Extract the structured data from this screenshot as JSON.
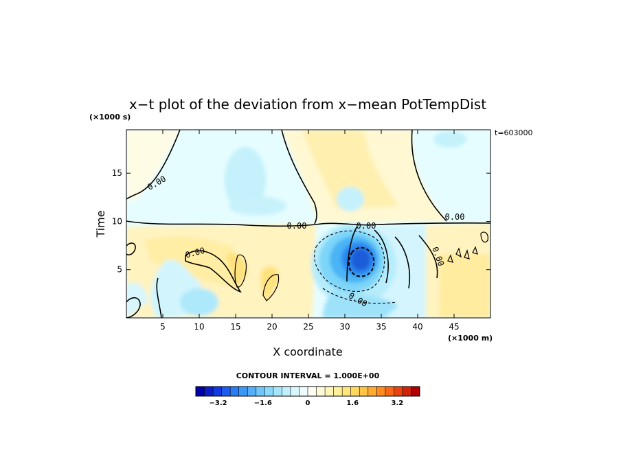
{
  "chart_data": {
    "type": "heatmap",
    "title": "x−t plot of the deviation from x−mean PotTempDist",
    "ylabel": "Time",
    "xlabel": "X coordinate",
    "y_unit": "(×1000 s)",
    "x_unit": "(×1000 m)",
    "time_label": "t=603000",
    "xlim": [
      0,
      50
    ],
    "ylim": [
      0,
      19.5
    ],
    "x_ticks": [
      "5",
      "10",
      "15",
      "20",
      "25",
      "30",
      "35",
      "40",
      "45"
    ],
    "x_tick_values": [
      5,
      10,
      15,
      20,
      25,
      30,
      35,
      40,
      45
    ],
    "y_ticks": [
      "5",
      "10",
      "15"
    ],
    "y_tick_values": [
      5,
      10,
      15
    ],
    "contour_labels": [
      "0.00",
      "0.00",
      "0.00",
      "0.00",
      "0.00",
      "0.00",
      "0.00",
      "0.00"
    ],
    "contour_interval_text": "CONTOUR INTERVAL = 1.000E+00",
    "colorbar": {
      "min": -4,
      "max": 4,
      "step": 0.4,
      "tick_labels": [
        "−3.2",
        "−1.6",
        "0",
        "1.6",
        "3.2"
      ],
      "tick_values": [
        -3.2,
        -1.6,
        0,
        1.6,
        3.2
      ],
      "colors": [
        "#0000a8",
        "#0a1ec8",
        "#0f3be0",
        "#1a5cf0",
        "#2a7cf5",
        "#3c98f5",
        "#54b0f8",
        "#6ec6fa",
        "#8ad8fb",
        "#a6e6fc",
        "#c0f0fd",
        "#d8f8fe",
        "#eefcff",
        "#fffff4",
        "#fffbd8",
        "#fff5b8",
        "#fff09a",
        "#ffe67c",
        "#ffd860",
        "#ffc444",
        "#ffaa30",
        "#ff8a20",
        "#f86818",
        "#e84410",
        "#d02408",
        "#b00000"
      ]
    }
  }
}
